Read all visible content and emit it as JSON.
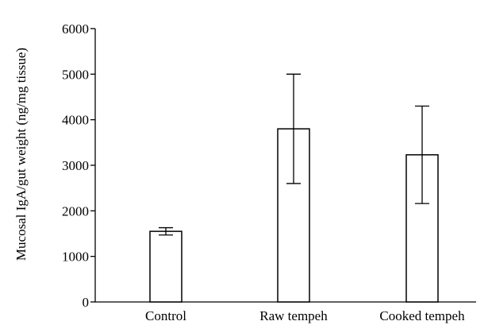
{
  "chart_data": {
    "type": "bar",
    "title": "",
    "xlabel": "",
    "ylabel": "Mucosal IgA/gut weight (ng/mg tissue)",
    "ylim": [
      0,
      6000
    ],
    "yticks": [
      0,
      1000,
      2000,
      3000,
      4000,
      5000,
      6000
    ],
    "categories": [
      "Control",
      "Raw tempeh",
      "Cooked tempeh"
    ],
    "values": [
      1550,
      3800,
      3230
    ],
    "errors": [
      80,
      1200,
      1070
    ],
    "bar_fill": "#ffffff",
    "bar_stroke": "#000000",
    "grid": false,
    "legend": "none"
  }
}
